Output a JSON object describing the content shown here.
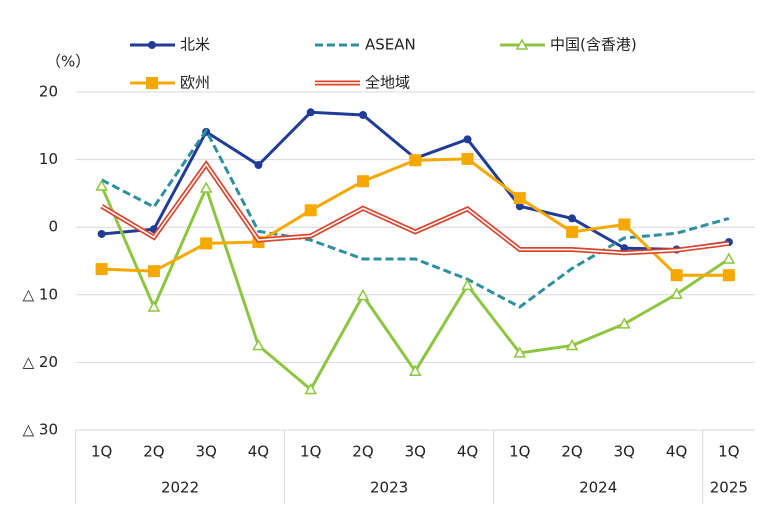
{
  "chart_data": {
    "type": "line",
    "y_unit": "（%）",
    "categories": [
      "1Q",
      "2Q",
      "3Q",
      "4Q",
      "1Q",
      "2Q",
      "3Q",
      "4Q",
      "1Q",
      "2Q",
      "3Q",
      "4Q",
      "1Q"
    ],
    "groups": [
      {
        "name": "2022",
        "size": 4
      },
      {
        "name": "2023",
        "size": 4
      },
      {
        "name": "2024",
        "size": 4
      },
      {
        "name": "2025",
        "size": 1
      }
    ],
    "ylim": [
      -30,
      20
    ],
    "yticks": [
      20,
      10,
      0,
      {
        "value": -10,
        "label": "△ 10"
      },
      {
        "value": -20,
        "label": "△ 20"
      },
      {
        "value": -30,
        "label": "△ 30"
      }
    ],
    "grid": true,
    "series": [
      {
        "name": "北米",
        "color": "#1f3c96",
        "style": "solid",
        "marker": "circle",
        "values": [
          -1.0,
          -0.3,
          14.1,
          9.2,
          17.0,
          16.6,
          10.2,
          13.0,
          3.1,
          1.3,
          -3.1,
          -3.3,
          -2.2
        ]
      },
      {
        "name": "ASEAN",
        "color": "#2e8f9e",
        "style": "dashed",
        "marker": "none",
        "values": [
          7.0,
          3.0,
          14.3,
          -0.6,
          -1.9,
          -4.7,
          -4.7,
          -7.7,
          -11.8,
          -6.1,
          -1.6,
          -0.9,
          1.3
        ]
      },
      {
        "name": "中国(含香港)",
        "color": "#8cc63f",
        "style": "solid",
        "marker": "triangle",
        "values": [
          6.1,
          -11.8,
          5.8,
          -17.5,
          -24.0,
          -10.1,
          -21.3,
          -8.6,
          -18.6,
          -17.5,
          -14.3,
          -9.9,
          -4.7
        ]
      },
      {
        "name": "欧州",
        "color": "#f5a800",
        "style": "solid",
        "marker": "square",
        "values": [
          -6.2,
          -6.5,
          -2.4,
          -2.2,
          2.5,
          6.8,
          9.9,
          10.1,
          4.3,
          -0.7,
          0.4,
          -7.1,
          -7.1
        ]
      },
      {
        "name": "全地域",
        "color": "#d9452e",
        "style": "double",
        "marker": "none",
        "values": [
          3.1,
          -1.5,
          9.3,
          -1.9,
          -1.3,
          2.8,
          -0.7,
          2.7,
          -3.3,
          -3.3,
          -3.8,
          -3.4,
          -2.4
        ]
      }
    ]
  }
}
